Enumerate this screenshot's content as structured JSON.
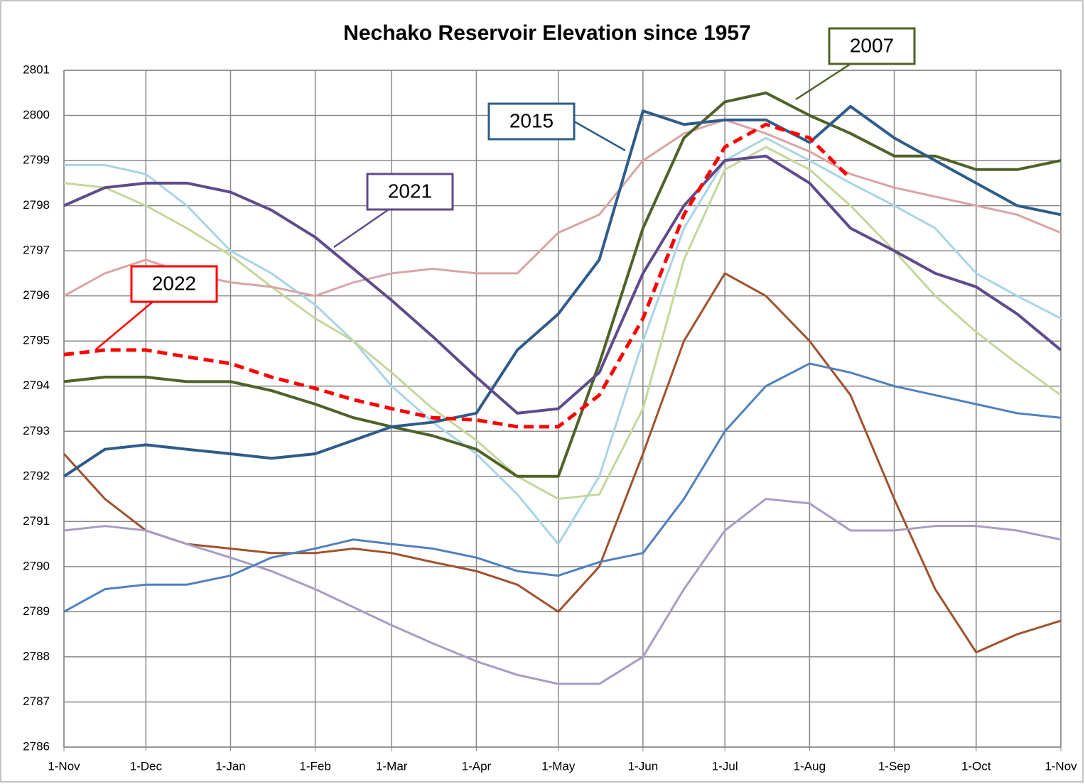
{
  "chart_data": {
    "type": "line",
    "title": "Nechako Reservoir Elevation since 1957",
    "x": [
      0,
      15,
      30,
      45,
      61,
      76,
      92,
      106,
      120,
      135,
      151,
      166,
      181,
      196,
      212,
      227,
      242,
      257,
      273,
      288,
      304,
      319,
      334,
      349,
      365
    ],
    "xlim": [
      0,
      365
    ],
    "xticks": [
      {
        "value": 0,
        "label": "1-Nov"
      },
      {
        "value": 30,
        "label": "1-Dec"
      },
      {
        "value": 61,
        "label": "1-Jan"
      },
      {
        "value": 92,
        "label": "1-Feb"
      },
      {
        "value": 120,
        "label": "1-Mar"
      },
      {
        "value": 151,
        "label": "1-Apr"
      },
      {
        "value": 181,
        "label": "1-May"
      },
      {
        "value": 212,
        "label": "1-Jun"
      },
      {
        "value": 242,
        "label": "1-Jul"
      },
      {
        "value": 273,
        "label": "1-Aug"
      },
      {
        "value": 304,
        "label": "1-Sep"
      },
      {
        "value": 334,
        "label": "1-Oct"
      },
      {
        "value": 365,
        "label": "1-Nov"
      }
    ],
    "ylim": [
      2786,
      2801
    ],
    "yticks": [
      2786,
      2787,
      2788,
      2789,
      2790,
      2791,
      2792,
      2793,
      2794,
      2795,
      2796,
      2797,
      2798,
      2799,
      2800,
      2801
    ],
    "grid": true,
    "series": [
      {
        "color": "#a8d4e6",
        "values": [
          2798.9,
          2798.9,
          2798.7,
          2798,
          2797,
          2796.5,
          2795.8,
          2795,
          2794,
          2793.2,
          2792.5,
          2791.6,
          2790.5,
          2792,
          2795,
          2797.5,
          2799,
          2799.5,
          2799,
          2798.5,
          2798,
          2797.5,
          2796.5,
          2796,
          2795.5
        ]
      },
      {
        "color": "#a0522d",
        "values": [
          2792.5,
          2791.5,
          2790.8,
          2790.5,
          2790.4,
          2790.3,
          2790.3,
          2790.4,
          2790.3,
          2790.1,
          2789.9,
          2789.6,
          2789,
          2790,
          2792.5,
          2795,
          2796.5,
          2796,
          2795,
          2793.8,
          2791.5,
          2789.5,
          2788.1,
          2788.5,
          2788.8
        ]
      },
      {
        "color": "#a99bc4",
        "values": [
          2790.8,
          2790.9,
          2790.8,
          2790.5,
          2790.2,
          2789.9,
          2789.5,
          2789.1,
          2788.7,
          2788.3,
          2787.9,
          2787.6,
          2787.4,
          2787.4,
          2788,
          2789.5,
          2790.8,
          2791.5,
          2791.4,
          2790.8,
          2790.8,
          2790.9,
          2790.9,
          2790.8,
          2790.6
        ]
      },
      {
        "color": "#c4d79b",
        "values": [
          2798.5,
          2798.4,
          2798,
          2797.5,
          2796.9,
          2796.2,
          2795.5,
          2795,
          2794.3,
          2793.5,
          2792.8,
          2792,
          2791.5,
          2791.6,
          2793.5,
          2796.8,
          2798.8,
          2799.3,
          2798.8,
          2798,
          2797,
          2796,
          2795.2,
          2794.5,
          2793.8
        ]
      },
      {
        "color": "#d9a5a3",
        "values": [
          2796,
          2796.5,
          2796.8,
          2796.5,
          2796.3,
          2796.2,
          2796,
          2796.3,
          2796.5,
          2796.6,
          2796.5,
          2796.5,
          2797.4,
          2797.8,
          2799,
          2799.6,
          2799.9,
          2799.6,
          2799.2,
          2798.7,
          2798.4,
          2798.2,
          2798,
          2797.8,
          2797.4
        ]
      },
      {
        "color": "#4f81bd",
        "values": [
          2789,
          2789.5,
          2789.6,
          2789.6,
          2789.8,
          2790.2,
          2790.4,
          2790.6,
          2790.5,
          2790.4,
          2790.2,
          2789.9,
          2789.8,
          2790.1,
          2790.3,
          2791.5,
          2793,
          2794,
          2794.5,
          2794.3,
          2794,
          2793.8,
          2793.6,
          2793.4,
          2793.3
        ]
      },
      {
        "name": "2007",
        "color": "#4f6228",
        "values": [
          2794.1,
          2794.2,
          2794.2,
          2794.1,
          2794.1,
          2793.9,
          2793.6,
          2793.3,
          2793.1,
          2792.9,
          2792.6,
          2792,
          2792,
          2794.5,
          2797.5,
          2799.5,
          2800.3,
          2800.5,
          2800,
          2799.6,
          2799.1,
          2799.1,
          2798.8,
          2798.8,
          2799
        ]
      },
      {
        "name": "2015",
        "color": "#2e5c8a",
        "values": [
          2792,
          2792.6,
          2792.7,
          2792.6,
          2792.5,
          2792.4,
          2792.5,
          2792.8,
          2793.1,
          2793.2,
          2793.4,
          2794.8,
          2795.6,
          2796.8,
          2800.1,
          2799.8,
          2799.9,
          2799.9,
          2799.4,
          2800.2,
          2799.5,
          2799,
          2798.5,
          2798,
          2797.8
        ]
      },
      {
        "name": "2021",
        "color": "#5f4b8b",
        "values": [
          2798,
          2798.4,
          2798.5,
          2798.5,
          2798.3,
          2797.9,
          2797.3,
          2796.6,
          2795.9,
          2795.1,
          2794.2,
          2793.4,
          2793.5,
          2794.3,
          2796.5,
          2798,
          2799,
          2799.1,
          2798.5,
          2797.5,
          2797,
          2796.5,
          2796.2,
          2795.6,
          2794.8
        ]
      },
      {
        "name": "2022",
        "color": "#ff0000",
        "dashed": true,
        "values": [
          2794.7,
          2794.8,
          2794.8,
          2794.65,
          2794.5,
          2794.2,
          2793.95,
          2793.7,
          2793.5,
          2793.3,
          2793.25,
          2793.1,
          2793.1,
          2793.8,
          2795.5,
          2797.8,
          2799.3,
          2799.8,
          2799.5,
          2798.6,
          null,
          null,
          null,
          null,
          null
        ]
      }
    ]
  }
}
